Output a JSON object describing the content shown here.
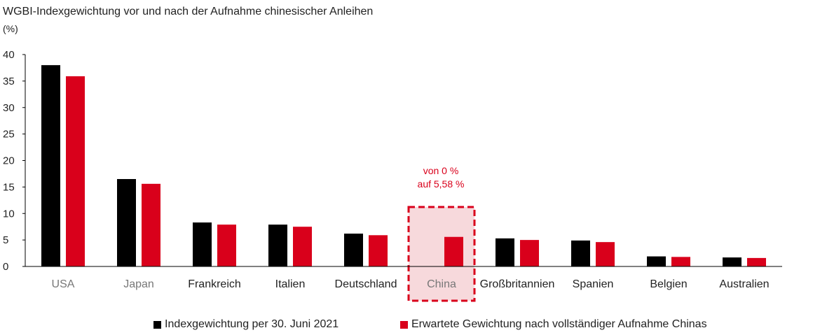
{
  "chart_data": {
    "type": "bar",
    "title": "WGBI-Indexgewichtung vor und nach der Aufnahme chinesischer Anleihen",
    "ylabel": "(%)",
    "xlabel": "",
    "ylim": [
      0,
      40
    ],
    "yticks": [
      0,
      5,
      10,
      15,
      20,
      25,
      30,
      35,
      40
    ],
    "grid": false,
    "legend_position": "bottom",
    "categories": [
      "USA",
      "Japan",
      "Frankreich",
      "Italien",
      "Deutschland",
      "China",
      "Großbritannien",
      "Spanien",
      "Belgien",
      "Australien"
    ],
    "series": [
      {
        "name": "Indexgewichtung per 30. Juni 2021",
        "color": "#000000",
        "values": [
          38.0,
          16.5,
          8.3,
          7.9,
          6.2,
          0,
          5.3,
          4.9,
          1.9,
          1.7
        ]
      },
      {
        "name": "Erwartete Gewichtung nach vollständiger Aufnahme Chinas",
        "color": "#d9001b",
        "values": [
          35.9,
          15.6,
          7.9,
          7.5,
          5.9,
          5.58,
          5.0,
          4.6,
          1.8,
          1.6
        ]
      }
    ],
    "muted_categories": [
      "USA",
      "Japan",
      "China"
    ],
    "highlight": {
      "category": "China",
      "line1": "von 0 %",
      "line2": "auf 5,58 %",
      "color": "#d9001b",
      "fill": "#f7d9dc"
    }
  }
}
